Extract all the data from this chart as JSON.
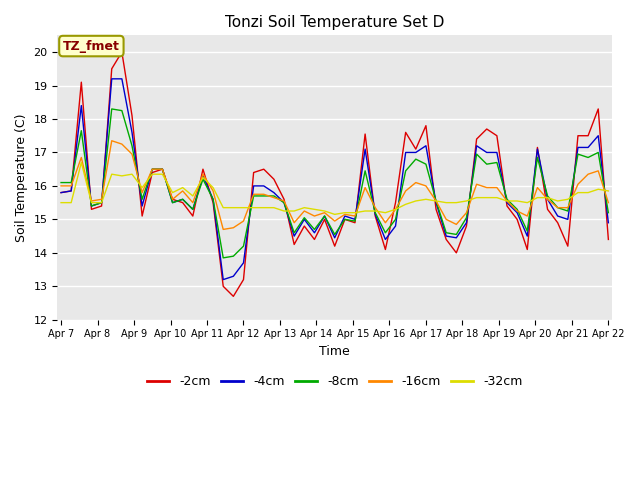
{
  "title": "Tonzi Soil Temperature Set D",
  "xlabel": "Time",
  "ylabel": "Soil Temperature (C)",
  "ylim": [
    12.0,
    20.5
  ],
  "yticks": [
    12.0,
    13.0,
    14.0,
    15.0,
    16.0,
    17.0,
    18.0,
    19.0,
    20.0
  ],
  "fig_bg_color": "#ffffff",
  "plot_bg_color": "#e8e8e8",
  "legend_label": "TZ_fmet",
  "series_colors": {
    "-2cm": "#dd0000",
    "-4cm": "#0000cc",
    "-8cm": "#00aa00",
    "-16cm": "#ff8800",
    "-32cm": "#dddd00"
  },
  "x_tick_labels": [
    "Apr 7",
    "Apr 8",
    "Apr 9",
    "Apr 10",
    "Apr 11",
    "Apr 12",
    "Apr 13",
    "Apr 14",
    "Apr 15",
    "Apr 16",
    "Apr 17",
    "Apr 18",
    "Apr 19",
    "Apr 20",
    "Apr 21",
    "Apr 22"
  ],
  "data": {
    "-2cm": [
      15.8,
      15.85,
      19.1,
      15.3,
      15.4,
      19.5,
      20.0,
      18.1,
      15.1,
      16.4,
      16.5,
      15.6,
      15.5,
      15.1,
      16.5,
      15.5,
      13.0,
      12.7,
      13.2,
      16.4,
      16.5,
      16.2,
      15.6,
      14.25,
      14.8,
      14.4,
      15.0,
      14.2,
      15.0,
      14.9,
      17.55,
      15.1,
      14.1,
      15.5,
      17.6,
      17.1,
      17.8,
      15.3,
      14.4,
      14.0,
      14.8,
      17.4,
      17.7,
      17.5,
      15.4,
      15.0,
      14.1,
      17.15,
      15.3,
      14.9,
      14.2,
      17.5,
      17.5,
      18.3,
      14.4
    ],
    "-4cm": [
      15.8,
      15.85,
      18.4,
      15.4,
      15.5,
      19.2,
      19.2,
      17.6,
      15.4,
      16.5,
      16.5,
      15.5,
      15.6,
      15.3,
      16.3,
      15.6,
      13.2,
      13.3,
      13.7,
      16.0,
      16.0,
      15.8,
      15.5,
      14.5,
      15.0,
      14.6,
      15.1,
      14.45,
      15.1,
      15.0,
      17.1,
      15.15,
      14.4,
      14.8,
      17.0,
      17.0,
      17.2,
      15.5,
      14.5,
      14.45,
      14.9,
      17.2,
      17.0,
      17.0,
      15.5,
      15.2,
      14.5,
      17.1,
      15.6,
      15.1,
      15.0,
      17.15,
      17.15,
      17.5,
      14.9
    ],
    "-8cm": [
      16.1,
      16.1,
      17.65,
      15.4,
      15.5,
      18.3,
      18.25,
      17.2,
      15.6,
      16.5,
      16.5,
      15.5,
      15.6,
      15.3,
      16.2,
      15.6,
      13.85,
      13.9,
      14.2,
      15.7,
      15.7,
      15.7,
      15.5,
      14.6,
      15.05,
      14.7,
      15.1,
      14.55,
      15.0,
      14.95,
      16.45,
      15.2,
      14.6,
      15.0,
      16.45,
      16.8,
      16.65,
      15.55,
      14.6,
      14.55,
      15.05,
      16.95,
      16.65,
      16.7,
      15.6,
      15.3,
      14.65,
      16.85,
      15.7,
      15.35,
      15.25,
      16.95,
      16.85,
      17.0,
      15.2
    ],
    "-16cm": [
      16.0,
      16.0,
      16.85,
      15.55,
      15.6,
      17.35,
      17.25,
      16.95,
      15.8,
      16.5,
      16.5,
      15.6,
      15.85,
      15.5,
      16.35,
      15.85,
      14.7,
      14.75,
      14.95,
      15.75,
      15.75,
      15.65,
      15.55,
      14.9,
      15.25,
      15.1,
      15.2,
      14.95,
      15.15,
      15.1,
      15.95,
      15.35,
      14.9,
      15.3,
      15.85,
      16.1,
      16.0,
      15.55,
      15.0,
      14.85,
      15.2,
      16.05,
      15.95,
      15.95,
      15.55,
      15.25,
      15.1,
      15.95,
      15.6,
      15.35,
      15.35,
      16.05,
      16.35,
      16.45,
      15.5
    ],
    "-32cm": [
      15.5,
      15.5,
      16.7,
      15.5,
      15.5,
      16.35,
      16.3,
      16.35,
      15.95,
      16.35,
      16.35,
      15.8,
      15.95,
      15.7,
      16.25,
      15.95,
      15.35,
      15.35,
      15.35,
      15.35,
      15.35,
      15.35,
      15.25,
      15.25,
      15.35,
      15.3,
      15.25,
      15.15,
      15.2,
      15.2,
      15.25,
      15.25,
      15.2,
      15.3,
      15.45,
      15.55,
      15.6,
      15.55,
      15.5,
      15.5,
      15.55,
      15.65,
      15.65,
      15.65,
      15.55,
      15.55,
      15.5,
      15.65,
      15.65,
      15.55,
      15.6,
      15.8,
      15.8,
      15.9,
      15.85
    ]
  }
}
